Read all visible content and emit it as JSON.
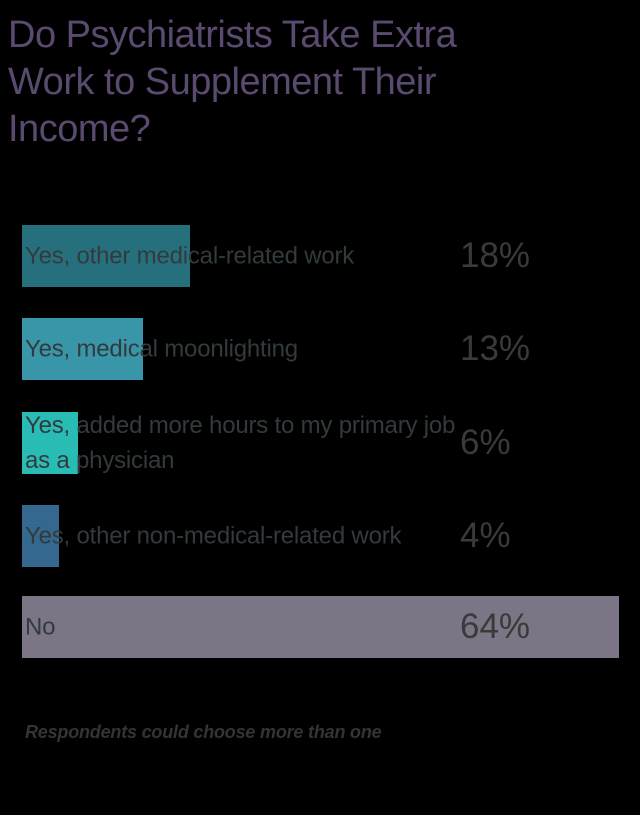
{
  "header": {
    "title": "Do Psychiatrists Take Extra Work to Supplement Their Income?"
  },
  "chart_data": {
    "type": "bar",
    "orientation": "horizontal",
    "title": "Do Psychiatrists Take Extra Work to Supplement Their Income?",
    "categories": [
      "Yes, other medical-related work",
      "Yes, medical moonlighting",
      "Yes, added more hours to my primary job as a physician",
      "Yes, other non-medical-related work",
      "No"
    ],
    "values": [
      18,
      13,
      6,
      4,
      64
    ],
    "value_labels": [
      "18%",
      "13%",
      "6%",
      "4%",
      "64%"
    ],
    "unit": "%",
    "xlim": [
      0,
      64
    ],
    "bar_colors": [
      "#26707e",
      "#3996a8",
      "#29bcb5",
      "#35688f",
      "#7b7585"
    ],
    "grid": false,
    "legend": "none",
    "annotation": "Respondents could choose more than one"
  },
  "footnote": {
    "text": "Respondents could choose more than one"
  },
  "colors": {
    "bg": "#000000",
    "title": "#5b4a6f",
    "label": "#333a3e",
    "value": "#3a3a3a",
    "note": "#343434"
  }
}
